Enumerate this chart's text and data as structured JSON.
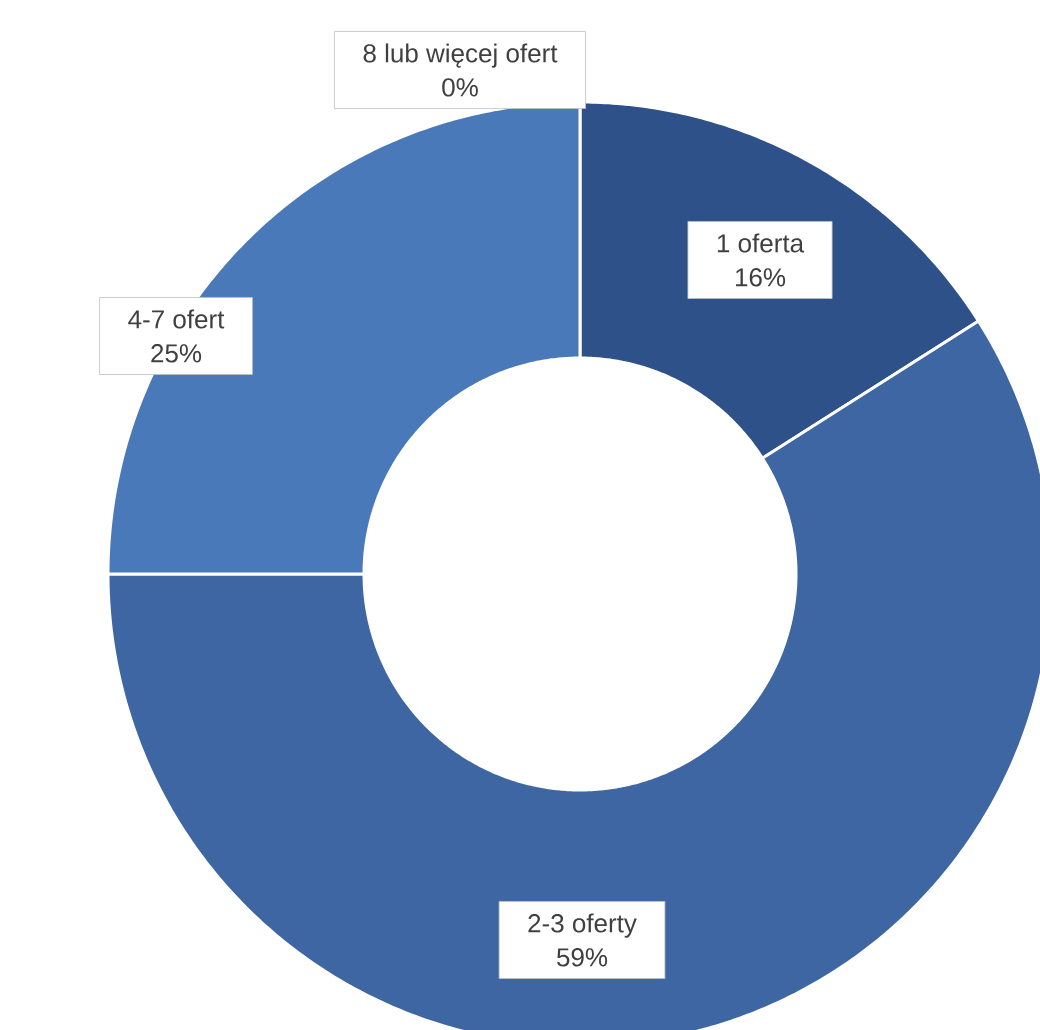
{
  "chart_data": {
    "type": "donut",
    "categories": [
      "1 oferta",
      "2-3 oferty",
      "4-7 ofert",
      "8 lub więcej ofert"
    ],
    "values": [
      16,
      59,
      25,
      0
    ],
    "value_labels": [
      "16%",
      "59%",
      "25%",
      "0%"
    ],
    "colors": [
      "#2f5189",
      "#3d66a2",
      "#4a79b9",
      "#5a8bd0"
    ]
  }
}
